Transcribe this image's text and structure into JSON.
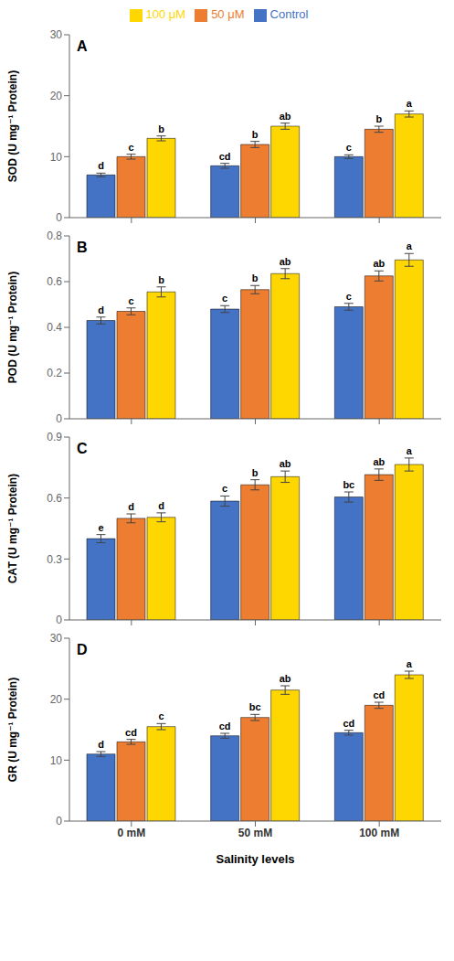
{
  "chart_data": [
    {
      "type": "bar",
      "title": "A",
      "ylabel": "SOD (U mg⁻¹ Protein)",
      "categories": [
        null,
        null,
        null
      ],
      "ylim": [
        0,
        30
      ],
      "yticks": [
        0,
        10,
        20,
        30
      ],
      "grid": false,
      "legend": "top",
      "series": [
        {
          "name": "Control",
          "color": "#4472C4",
          "values": [
            7.0,
            8.5,
            10.0
          ],
          "errors": [
            0.3,
            0.4,
            0.3
          ],
          "letters": [
            "d",
            "cd",
            "c"
          ]
        },
        {
          "name": "50 μM",
          "color": "#ED7D31",
          "values": [
            10.0,
            12.0,
            14.5
          ],
          "errors": [
            0.4,
            0.5,
            0.5
          ],
          "letters": [
            "c",
            "b",
            "b"
          ]
        },
        {
          "name": "100 μM",
          "color": "#FFD700",
          "values": [
            13.0,
            15.0,
            17.0
          ],
          "errors": [
            0.4,
            0.5,
            0.5
          ],
          "letters": [
            "b",
            "ab",
            "a"
          ]
        }
      ]
    },
    {
      "type": "bar",
      "title": "B",
      "ylabel": "POD (U mg⁻¹ Protein)",
      "categories": [
        null,
        null,
        null
      ],
      "ylim": [
        0,
        0.8
      ],
      "yticks": [
        0,
        0.2,
        0.4,
        0.6,
        0.8
      ],
      "grid": false,
      "series": [
        {
          "name": "Control",
          "color": "#4472C4",
          "values": [
            0.43,
            0.48,
            0.49
          ],
          "errors": [
            0.015,
            0.015,
            0.015
          ],
          "letters": [
            "d",
            "c",
            "c"
          ]
        },
        {
          "name": "50 μM",
          "color": "#ED7D31",
          "values": [
            0.47,
            0.565,
            0.625
          ],
          "errors": [
            0.015,
            0.018,
            0.022
          ],
          "letters": [
            "c",
            "b",
            "ab"
          ]
        },
        {
          "name": "100 μM",
          "color": "#FFD700",
          "values": [
            0.555,
            0.635,
            0.695
          ],
          "errors": [
            0.022,
            0.022,
            0.028
          ],
          "letters": [
            "b",
            "ab",
            "a"
          ]
        }
      ]
    },
    {
      "type": "bar",
      "title": "C",
      "ylabel": "CAT (U mg⁻¹ Protein)",
      "categories": [
        null,
        null,
        null
      ],
      "ylim": [
        0,
        0.9
      ],
      "yticks": [
        0,
        0.3,
        0.6,
        0.9
      ],
      "grid": false,
      "series": [
        {
          "name": "Control",
          "color": "#4472C4",
          "values": [
            0.4,
            0.585,
            0.605
          ],
          "errors": [
            0.02,
            0.025,
            0.025
          ],
          "letters": [
            "e",
            "c",
            "bc"
          ]
        },
        {
          "name": "50 μM",
          "color": "#ED7D31",
          "values": [
            0.5,
            0.665,
            0.715
          ],
          "errors": [
            0.022,
            0.025,
            0.028
          ],
          "letters": [
            "d",
            "b",
            "ab"
          ]
        },
        {
          "name": "100 μM",
          "color": "#FFD700",
          "values": [
            0.505,
            0.705,
            0.765
          ],
          "errors": [
            0.022,
            0.028,
            0.032
          ],
          "letters": [
            "d",
            "ab",
            "a"
          ]
        }
      ]
    },
    {
      "type": "bar",
      "title": "D",
      "ylabel": "GR (U mg⁻¹ Protein)",
      "xlabel": "Salinity levels",
      "categories": [
        "0 mM",
        "50 mM",
        "100 mM"
      ],
      "ylim": [
        0,
        30
      ],
      "yticks": [
        0,
        10,
        20,
        30
      ],
      "grid": false,
      "series": [
        {
          "name": "Control",
          "color": "#4472C4",
          "values": [
            11.0,
            14.0,
            14.5
          ],
          "errors": [
            0.4,
            0.4,
            0.4
          ],
          "letters": [
            "d",
            "cd",
            "cd"
          ]
        },
        {
          "name": "50 μM",
          "color": "#ED7D31",
          "values": [
            13.0,
            17.0,
            19.0
          ],
          "errors": [
            0.4,
            0.5,
            0.5
          ],
          "letters": [
            "cd",
            "bc",
            "cd"
          ]
        },
        {
          "name": "100 μM",
          "color": "#FFD700",
          "values": [
            15.5,
            21.5,
            24.0
          ],
          "errors": [
            0.5,
            0.7,
            0.6
          ],
          "letters": [
            "c",
            "ab",
            "a"
          ]
        }
      ]
    }
  ]
}
